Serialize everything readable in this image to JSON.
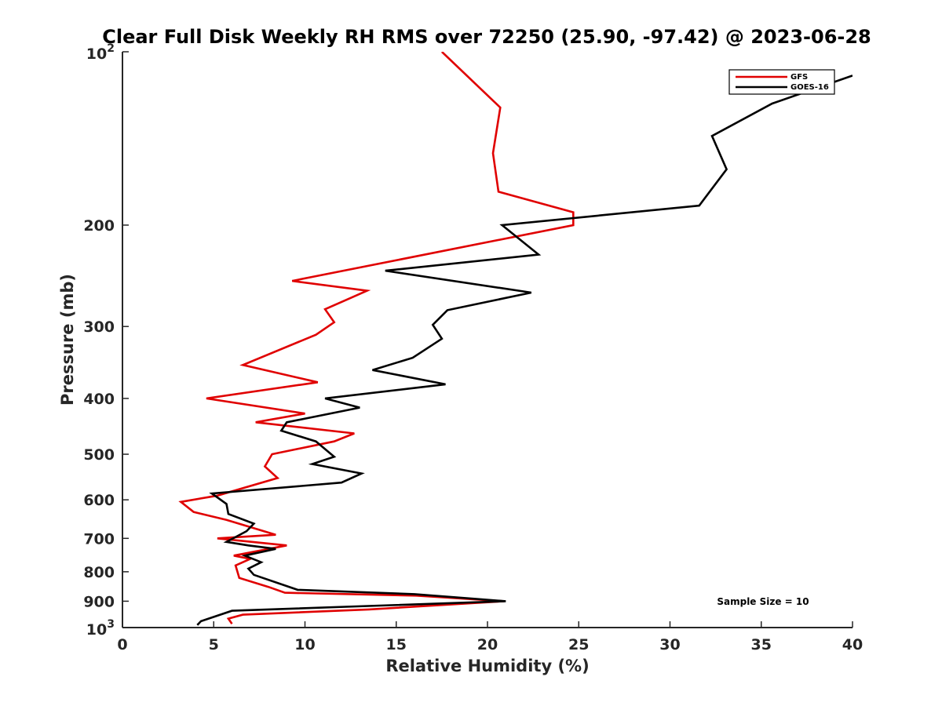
{
  "chart_data": {
    "type": "line",
    "title": "Clear Full Disk Weekly RH RMS over 72250 (25.90, -97.42) @ 2023-06-28",
    "xlabel": "Relative Humidity (%)",
    "ylabel": "Pressure (mb)",
    "xlim": [
      0,
      40
    ],
    "ylim": [
      100,
      1000
    ],
    "y_scale": "log",
    "y_reversed": true,
    "x_ticks": [
      0,
      5,
      10,
      15,
      20,
      25,
      30,
      35,
      40
    ],
    "x_tick_labels": [
      "0",
      "5",
      "10",
      "15",
      "20",
      "25",
      "30",
      "35",
      "40"
    ],
    "y_ticks": [
      {
        "value": 100,
        "base": "10",
        "exp": "2",
        "label": ""
      },
      {
        "value": 200,
        "label": "200"
      },
      {
        "value": 300,
        "label": "300"
      },
      {
        "value": 400,
        "label": "400"
      },
      {
        "value": 500,
        "label": "500"
      },
      {
        "value": 600,
        "label": "600"
      },
      {
        "value": 700,
        "label": "700"
      },
      {
        "value": 800,
        "label": "800"
      },
      {
        "value": 900,
        "label": "900"
      },
      {
        "value": 1000,
        "base": "10",
        "exp": "3",
        "label": ""
      }
    ],
    "grid": false,
    "legend_position": "top-right",
    "annotation": "Sample Size = 10",
    "series": [
      {
        "name": "GFS",
        "color": "#e00000",
        "points": [
          [
            17.5,
            100
          ],
          [
            20.7,
            125
          ],
          [
            20.3,
            150
          ],
          [
            20.6,
            175
          ],
          [
            24.7,
            190
          ],
          [
            24.7,
            200
          ],
          [
            9.3,
            250
          ],
          [
            13.4,
            260
          ],
          [
            11.1,
            280
          ],
          [
            11.6,
            295
          ],
          [
            10.6,
            310
          ],
          [
            6.6,
            350
          ],
          [
            10.7,
            375
          ],
          [
            4.6,
            400
          ],
          [
            10.0,
            425
          ],
          [
            7.3,
            440
          ],
          [
            12.7,
            460
          ],
          [
            11.6,
            475
          ],
          [
            8.2,
            500
          ],
          [
            7.8,
            525
          ],
          [
            8.5,
            550
          ],
          [
            5.2,
            590
          ],
          [
            3.2,
            605
          ],
          [
            3.9,
            630
          ],
          [
            5.7,
            650
          ],
          [
            8.4,
            690
          ],
          [
            5.2,
            700
          ],
          [
            9.0,
            720
          ],
          [
            6.1,
            750
          ],
          [
            7.0,
            760
          ],
          [
            6.2,
            780
          ],
          [
            6.4,
            820
          ],
          [
            8.0,
            850
          ],
          [
            8.9,
            870
          ],
          [
            16.1,
            880
          ],
          [
            20.9,
            900
          ],
          [
            13.5,
            930
          ],
          [
            6.6,
            950
          ],
          [
            5.8,
            965
          ],
          [
            6.0,
            985
          ]
        ]
      },
      {
        "name": "GOES-16",
        "color": "#000000",
        "points": [
          [
            40.0,
            110
          ],
          [
            35.6,
            123
          ],
          [
            32.3,
            140
          ],
          [
            33.1,
            160
          ],
          [
            31.6,
            185
          ],
          [
            20.8,
            200
          ],
          [
            22.8,
            225
          ],
          [
            14.4,
            240
          ],
          [
            22.4,
            262
          ],
          [
            17.8,
            281
          ],
          [
            17.0,
            298
          ],
          [
            17.5,
            315
          ],
          [
            15.9,
            340
          ],
          [
            13.7,
            357
          ],
          [
            17.7,
            378
          ],
          [
            11.1,
            400
          ],
          [
            13.0,
            415
          ],
          [
            9.0,
            440
          ],
          [
            8.7,
            455
          ],
          [
            10.6,
            475
          ],
          [
            11.6,
            505
          ],
          [
            10.4,
            520
          ],
          [
            13.1,
            540
          ],
          [
            12.0,
            560
          ],
          [
            4.9,
            585
          ],
          [
            5.7,
            610
          ],
          [
            5.8,
            635
          ],
          [
            7.2,
            660
          ],
          [
            6.8,
            680
          ],
          [
            5.7,
            710
          ],
          [
            6.9,
            720
          ],
          [
            8.4,
            730
          ],
          [
            6.7,
            750
          ],
          [
            7.6,
            770
          ],
          [
            6.9,
            790
          ],
          [
            7.2,
            810
          ],
          [
            9.6,
            860
          ],
          [
            16.0,
            875
          ],
          [
            21.0,
            900
          ],
          [
            6.0,
            935
          ],
          [
            4.3,
            975
          ],
          [
            4.1,
            990
          ]
        ]
      }
    ]
  }
}
